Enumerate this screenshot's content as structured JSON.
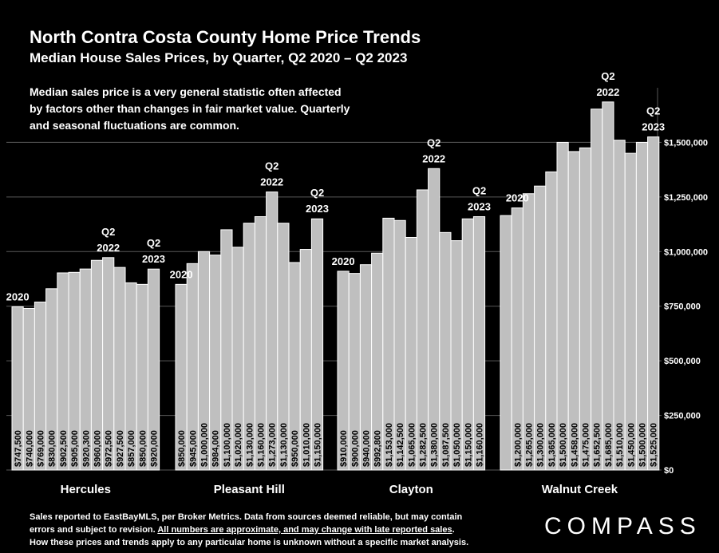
{
  "title": "North Contra Costa County Home Price Trends",
  "subtitle": "Median House Sales Prices, by Quarter, Q2 2020 – Q2 2023",
  "note": [
    "Median sales price is a very general statistic often affected",
    "by factors other than changes in fair market value. Quarterly",
    "and seasonal fluctuations are common."
  ],
  "footer": {
    "line1": "Sales reported to EastBayMLS, per Broker Metrics. Data from sources deemed reliable, but may contain",
    "line2_prefix": "errors and subject to revision. ",
    "line2_underlined": "All numbers are approximate, and may change with late reported sales",
    "line2_suffix": ".",
    "line3": "How these prices and trends apply to any particular home is unknown without a specific market analysis."
  },
  "brand": "COMPASS",
  "colors": {
    "background": "#000000",
    "bar": "#bfbfbf",
    "bar_border": "#ffffff",
    "grid": "#595959",
    "text": "#ffffff"
  },
  "chart_data": {
    "type": "bar",
    "ylim": [
      0,
      1750000
    ],
    "y_ticks": [
      0,
      250000,
      500000,
      750000,
      1000000,
      1250000,
      1500000
    ],
    "y_tick_labels": [
      "$0",
      "$250,000",
      "$500,000",
      "$750,000",
      "$1,000,000",
      "$1,250,000",
      "$1,500,000"
    ],
    "grid": true,
    "groups": [
      {
        "name": "Hercules",
        "values": [
          747500,
          740000,
          769000,
          830000,
          902500,
          905000,
          920300,
          960000,
          972500,
          927500,
          857000,
          850000,
          920000
        ],
        "value_labels": [
          "$747,500",
          "$740,000",
          "$769,000",
          "$830,000",
          "$902,500",
          "$905,000",
          "$920,300",
          "$960,000",
          "$972,500",
          "$927,500",
          "$857,000",
          "$850,000",
          "$920,000"
        ],
        "annotations": [
          {
            "bar": 0,
            "lines": [
              "2020"
            ]
          },
          {
            "bar": 8,
            "lines": [
              "Q2",
              "2022"
            ]
          },
          {
            "bar": 12,
            "lines": [
              "Q2",
              "2023"
            ]
          }
        ]
      },
      {
        "name": "Pleasant Hill",
        "values": [
          850000,
          945000,
          1000000,
          984000,
          1100000,
          1020000,
          1130000,
          1160000,
          1273000,
          1130000,
          950000,
          1010000,
          1150000
        ],
        "value_labels": [
          "$850,000",
          "$945,000",
          "$1,000,000",
          "$984,000",
          "$1,100,000",
          "$1,020,000",
          "$1,130,000",
          "$1,160,000",
          "$1,273,000",
          "$1,130,000",
          "$950,000",
          "$1,010,000",
          "$1,150,000"
        ],
        "annotations": [
          {
            "bar": 0,
            "lines": [
              "2020"
            ]
          },
          {
            "bar": 8,
            "lines": [
              "Q2",
              "2022"
            ]
          },
          {
            "bar": 12,
            "lines": [
              "Q2",
              "2023"
            ]
          }
        ]
      },
      {
        "name": "Clayton",
        "values": [
          910000,
          900000,
          940000,
          992800,
          1153000,
          1142500,
          1065000,
          1282500,
          1380000,
          1087500,
          1050000,
          1150000,
          1160000
        ],
        "value_labels": [
          "$910,000",
          "$900,000",
          "$940,000",
          "$992,800",
          "$1,153,000",
          "$1,142,500",
          "$1,065,000",
          "$1,282,500",
          "$1,380,000",
          "$1,087,500",
          "$1,050,000",
          "$1,150,000",
          "$1,160,000"
        ],
        "annotations": [
          {
            "bar": 0,
            "lines": [
              "2020"
            ]
          },
          {
            "bar": 8,
            "lines": [
              "Q2",
              "2022"
            ]
          },
          {
            "bar": 12,
            "lines": [
              "Q2",
              "2023"
            ]
          }
        ]
      },
      {
        "name": "Walnut Creek",
        "values": [
          1165000,
          1200000,
          1265000,
          1300000,
          1365000,
          1500000,
          1458000,
          1475000,
          1652500,
          1685000,
          1510000,
          1450000,
          1500000,
          1525000
        ],
        "value_labels": [
          "",
          "$1,200,000",
          "$1,265,000",
          "$1,300,000",
          "$1,365,000",
          "$1,500,000",
          "$1,458,000",
          "$1,475,000",
          "$1,652,500",
          "$1,685,000",
          "$1,510,000",
          "$1,450,000",
          "$1,500,000",
          "$1,525,000"
        ],
        "annotations": [
          {
            "bar": 1,
            "lines": [
              "2020"
            ]
          },
          {
            "bar": 9,
            "lines": [
              "Q2",
              "2022"
            ]
          },
          {
            "bar": 13,
            "lines": [
              "Q2",
              "2023"
            ]
          }
        ]
      }
    ]
  }
}
